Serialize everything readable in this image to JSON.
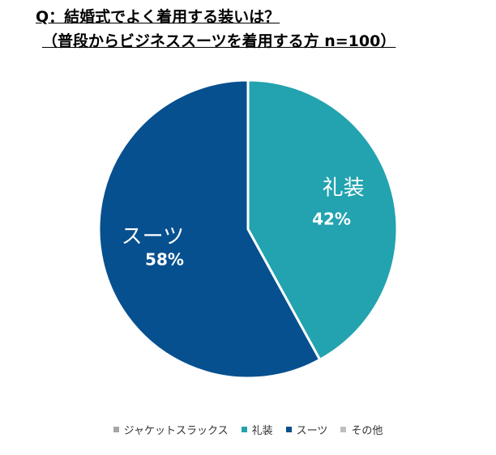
{
  "title": {
    "line1": "Q：結婚式でよく着用する装いは？",
    "line2": "（普段からビジネススーツを着用する方 n=100）"
  },
  "chart_data": {
    "type": "pie",
    "slices": [
      {
        "name": "ジャケットスラックス",
        "value": 0,
        "color": "#A6A6A6"
      },
      {
        "name": "礼装",
        "value": 42,
        "label": "42%",
        "color": "#22A3AF"
      },
      {
        "name": "スーツ",
        "value": 58,
        "label": "58%",
        "color": "#06508F"
      },
      {
        "name": "その他",
        "value": 0,
        "color": "#BFBFBF"
      }
    ],
    "legend_position": "bottom",
    "start_angle": "top",
    "direction": "clockwise"
  }
}
